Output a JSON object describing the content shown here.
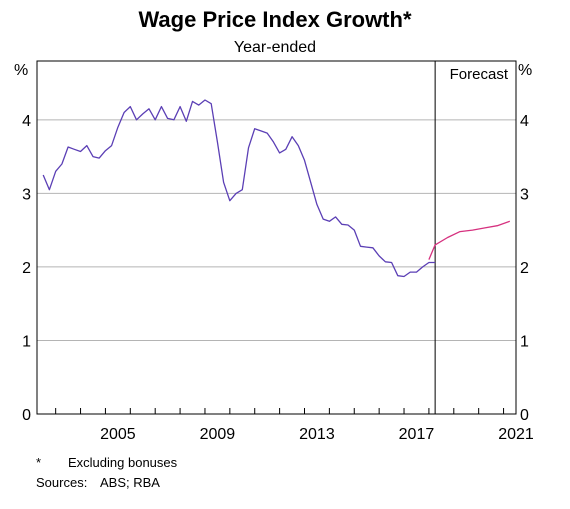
{
  "chart_data": {
    "type": "line",
    "title": "Wage Price Index Growth*",
    "subtitle": "Year-ended",
    "y_unit_left": "%",
    "y_unit_right": "%",
    "ylim": [
      0,
      4.8
    ],
    "yticks": [
      0,
      1,
      2,
      3,
      4
    ],
    "xlim": [
      2002.25,
      2021.5
    ],
    "xtick_labels": [
      "2005",
      "2009",
      "2013",
      "2017",
      "2021"
    ],
    "xtick_values": [
      2005,
      2009,
      2013,
      2017,
      2021
    ],
    "grid": true,
    "forecast_line_x": 2018.25,
    "forecast_label": "Forecast",
    "colors": {
      "actual": "#5b3fb5",
      "forecast": "#d6317f",
      "grid": "#b4b4b4"
    },
    "series": [
      {
        "style": "actual",
        "x": [
          2002.5,
          2002.75,
          2003.0,
          2003.25,
          2003.5,
          2003.75,
          2004.0,
          2004.25,
          2004.5,
          2004.75,
          2005.0,
          2005.25,
          2005.5,
          2005.75,
          2006.0,
          2006.25,
          2006.5,
          2006.75,
          2007.0,
          2007.25,
          2007.5,
          2007.75,
          2008.0,
          2008.25,
          2008.5,
          2008.75,
          2009.0,
          2009.25,
          2009.5,
          2009.75,
          2010.0,
          2010.25,
          2010.5,
          2010.75,
          2011.0,
          2011.25,
          2011.5,
          2011.75,
          2012.0,
          2012.25,
          2012.5,
          2012.75,
          2013.0,
          2013.25,
          2013.5,
          2013.75,
          2014.0,
          2014.25,
          2014.5,
          2014.75,
          2015.0,
          2015.25,
          2015.5,
          2015.75,
          2016.0,
          2016.25,
          2016.5,
          2016.75,
          2017.0,
          2017.25,
          2017.5,
          2017.75,
          2018.0,
          2018.25
        ],
        "values": [
          3.25,
          3.05,
          3.3,
          3.4,
          3.63,
          3.6,
          3.57,
          3.65,
          3.5,
          3.48,
          3.58,
          3.65,
          3.9,
          4.1,
          4.18,
          4.0,
          4.08,
          4.15,
          4.0,
          4.18,
          4.02,
          4.0,
          4.18,
          3.98,
          4.25,
          4.2,
          4.27,
          4.22,
          3.7,
          3.15,
          2.9,
          3.0,
          3.05,
          3.62,
          3.88,
          3.85,
          3.82,
          3.7,
          3.55,
          3.6,
          3.77,
          3.65,
          3.45,
          3.15,
          2.85,
          2.65,
          2.62,
          2.68,
          2.58,
          2.57,
          2.5,
          2.28,
          2.27,
          2.26,
          2.15,
          2.07,
          2.06,
          1.88,
          1.87,
          1.93,
          1.93,
          2.0,
          2.06,
          2.06
        ]
      },
      {
        "style": "forecast",
        "x": [
          2018.0,
          2018.25,
          2018.75,
          2019.25,
          2019.75,
          2020.25,
          2020.75,
          2021.25
        ],
        "values": [
          2.1,
          2.3,
          2.4,
          2.48,
          2.5,
          2.53,
          2.56,
          2.62
        ]
      }
    ]
  },
  "notes": {
    "footnote_symbol": "*",
    "footnote_text": "Excluding bonuses",
    "sources_label": "Sources:",
    "sources_text": "ABS; RBA"
  }
}
